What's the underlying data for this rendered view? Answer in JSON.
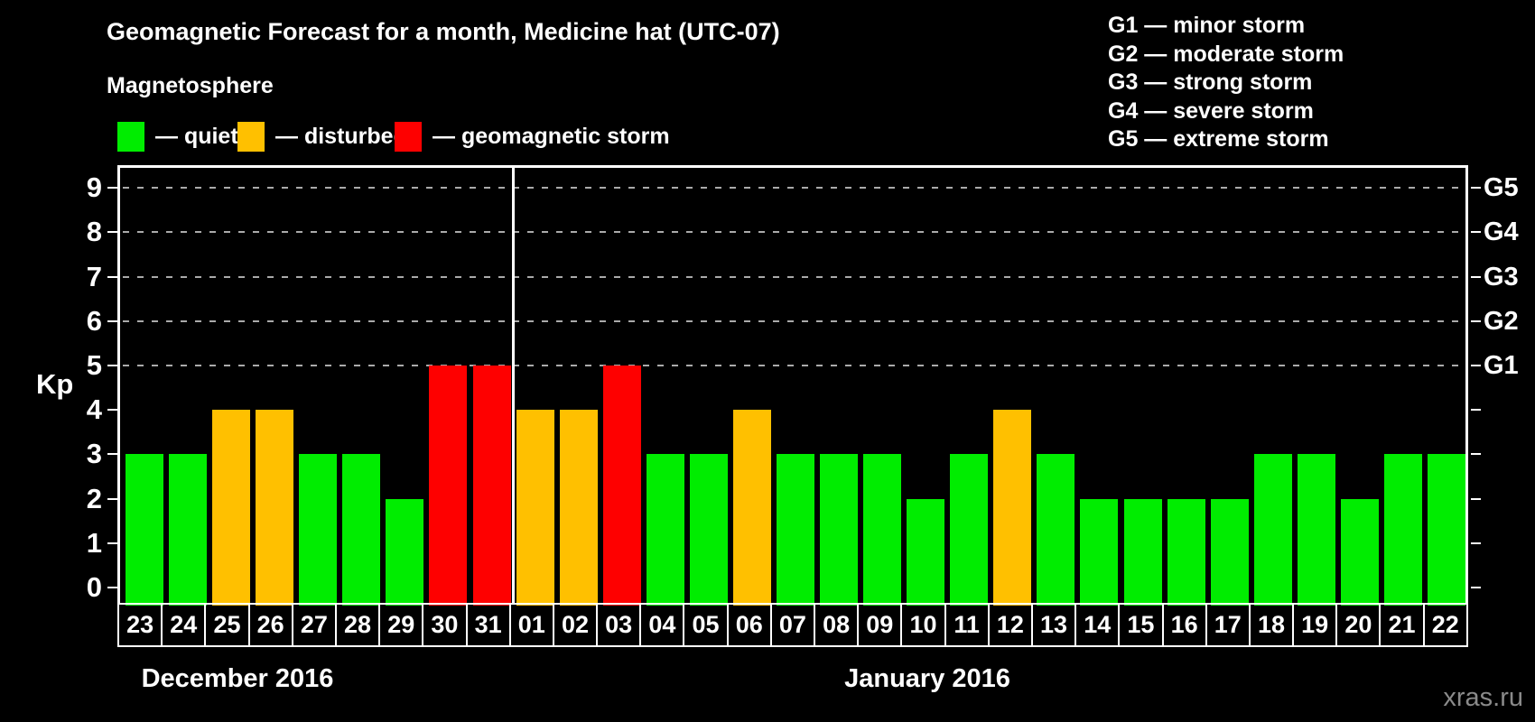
{
  "title": "Geomagnetic Forecast for a month, Medicine hat (UTC-07)",
  "subtitle": "Magnetosphere",
  "legend": {
    "items": [
      {
        "key": "quiet",
        "label": "— quiet",
        "color": "#00ed00"
      },
      {
        "key": "disturbed",
        "label": "— disturbed",
        "color": "#ffc000"
      },
      {
        "key": "storm",
        "label": "— geomagnetic storm",
        "color": "#fe0000"
      }
    ]
  },
  "g_scale": [
    "G1 — minor storm",
    "G2 — moderate storm",
    "G3 — strong storm",
    "G4 — severe storm",
    "G5 — extreme storm"
  ],
  "watermark": "xras.ru",
  "chart_data": {
    "type": "bar",
    "title": "Geomagnetic Forecast for a month, Medicine hat (UTC-07)",
    "ylabel": "Kp",
    "ylim": [
      0,
      9
    ],
    "y_ticks": [
      0,
      1,
      2,
      3,
      4,
      5,
      6,
      7,
      8,
      9
    ],
    "gridlines_at_kp": [
      5,
      6,
      7,
      8,
      9
    ],
    "grid": "dashed horizontal at storm levels only",
    "right_axis": [
      {
        "label": "G1",
        "kp": 5
      },
      {
        "label": "G2",
        "kp": 6
      },
      {
        "label": "G3",
        "kp": 7
      },
      {
        "label": "G4",
        "kp": 8
      },
      {
        "label": "G5",
        "kp": 9
      }
    ],
    "status_colors": {
      "quiet": "#00ed00",
      "disturbed": "#ffc000",
      "storm": "#fe0000"
    },
    "month_groups": [
      {
        "label": "December 2016",
        "start_index": 0,
        "count": 9
      },
      {
        "label": "January 2016",
        "start_index": 9,
        "count": 22
      }
    ],
    "days": [
      {
        "day": "23",
        "kp": 3,
        "status": "quiet"
      },
      {
        "day": "24",
        "kp": 3,
        "status": "quiet"
      },
      {
        "day": "25",
        "kp": 4,
        "status": "disturbed"
      },
      {
        "day": "26",
        "kp": 4,
        "status": "disturbed"
      },
      {
        "day": "27",
        "kp": 3,
        "status": "quiet"
      },
      {
        "day": "28",
        "kp": 3,
        "status": "quiet"
      },
      {
        "day": "29",
        "kp": 2,
        "status": "quiet"
      },
      {
        "day": "30",
        "kp": 5,
        "status": "storm"
      },
      {
        "day": "31",
        "kp": 5,
        "status": "storm"
      },
      {
        "day": "01",
        "kp": 4,
        "status": "disturbed"
      },
      {
        "day": "02",
        "kp": 4,
        "status": "disturbed"
      },
      {
        "day": "03",
        "kp": 5,
        "status": "storm"
      },
      {
        "day": "04",
        "kp": 3,
        "status": "quiet"
      },
      {
        "day": "05",
        "kp": 3,
        "status": "quiet"
      },
      {
        "day": "06",
        "kp": 4,
        "status": "disturbed"
      },
      {
        "day": "07",
        "kp": 3,
        "status": "quiet"
      },
      {
        "day": "08",
        "kp": 3,
        "status": "quiet"
      },
      {
        "day": "09",
        "kp": 3,
        "status": "quiet"
      },
      {
        "day": "10",
        "kp": 2,
        "status": "quiet"
      },
      {
        "day": "11",
        "kp": 3,
        "status": "quiet"
      },
      {
        "day": "12",
        "kp": 4,
        "status": "disturbed"
      },
      {
        "day": "13",
        "kp": 3,
        "status": "quiet"
      },
      {
        "day": "14",
        "kp": 2,
        "status": "quiet"
      },
      {
        "day": "15",
        "kp": 2,
        "status": "quiet"
      },
      {
        "day": "16",
        "kp": 2,
        "status": "quiet"
      },
      {
        "day": "17",
        "kp": 2,
        "status": "quiet"
      },
      {
        "day": "18",
        "kp": 3,
        "status": "quiet"
      },
      {
        "day": "19",
        "kp": 3,
        "status": "quiet"
      },
      {
        "day": "20",
        "kp": 2,
        "status": "quiet"
      },
      {
        "day": "21",
        "kp": 3,
        "status": "quiet"
      },
      {
        "day": "22",
        "kp": 3,
        "status": "quiet"
      }
    ]
  }
}
